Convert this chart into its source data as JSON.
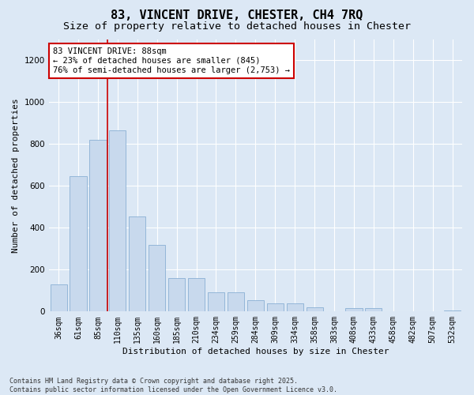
{
  "title": "83, VINCENT DRIVE, CHESTER, CH4 7RQ",
  "subtitle": "Size of property relative to detached houses in Chester",
  "xlabel": "Distribution of detached houses by size in Chester",
  "ylabel": "Number of detached properties",
  "bar_color": "#c8d9ed",
  "bar_edge_color": "#8ab0d4",
  "vline_color": "#cc0000",
  "vline_x": 2.5,
  "annotation_text": "83 VINCENT DRIVE: 88sqm\n← 23% of detached houses are smaller (845)\n76% of semi-detached houses are larger (2,753) →",
  "annotation_box_edge_color": "#cc0000",
  "categories": [
    "36sqm",
    "61sqm",
    "85sqm",
    "110sqm",
    "135sqm",
    "160sqm",
    "185sqm",
    "210sqm",
    "234sqm",
    "259sqm",
    "284sqm",
    "309sqm",
    "334sqm",
    "358sqm",
    "383sqm",
    "408sqm",
    "433sqm",
    "458sqm",
    "482sqm",
    "507sqm",
    "532sqm"
  ],
  "values": [
    130,
    645,
    820,
    865,
    455,
    320,
    160,
    160,
    90,
    90,
    55,
    40,
    40,
    20,
    0,
    15,
    15,
    0,
    0,
    0,
    5
  ],
  "ylim": [
    0,
    1300
  ],
  "yticks": [
    0,
    200,
    400,
    600,
    800,
    1000,
    1200
  ],
  "bg_color": "#dce8f5",
  "footnote": "Contains HM Land Registry data © Crown copyright and database right 2025.\nContains public sector information licensed under the Open Government Licence v3.0.",
  "title_fontsize": 11,
  "subtitle_fontsize": 9.5,
  "axis_label_fontsize": 8,
  "tick_fontsize": 7,
  "annot_fontsize": 7.5,
  "footnote_fontsize": 6
}
